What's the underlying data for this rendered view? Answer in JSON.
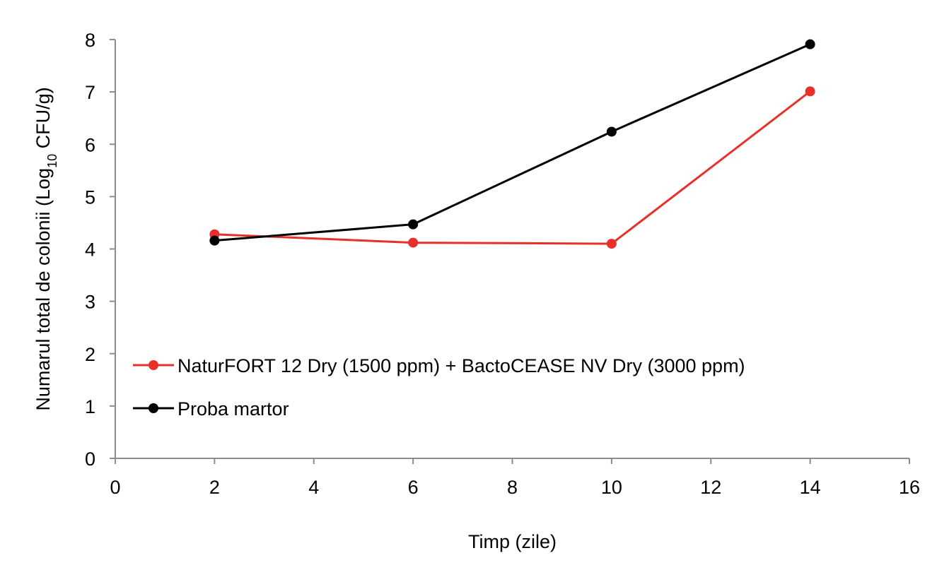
{
  "chart_data": {
    "type": "line",
    "xlabel": "Timp (zile)",
    "ylabel": {
      "prefix": "Numarul total de colonii (Log",
      "subscript": "10",
      "suffix": " CFU/g)"
    },
    "xlim": [
      0,
      16
    ],
    "ylim": [
      0,
      8
    ],
    "xticks": [
      "0",
      "2",
      "4",
      "6",
      "8",
      "10",
      "12",
      "14",
      "16"
    ],
    "yticks": [
      "0",
      "1",
      "2",
      "3",
      "4",
      "5",
      "6",
      "7",
      "8"
    ],
    "grid": false,
    "legend_position": "lower-left",
    "series": [
      {
        "name": "NaturFORT 12 Dry (1500 ppm) + BactoCEASE NV Dry (3000 ppm)",
        "color": "#e8302a",
        "x": [
          2,
          6,
          10,
          14
        ],
        "y": [
          4.28,
          4.12,
          4.1,
          7.01
        ]
      },
      {
        "name": "Proba martor",
        "color": "#000000",
        "x": [
          2,
          6,
          10,
          14
        ],
        "y": [
          4.16,
          4.47,
          6.24,
          7.91
        ]
      }
    ]
  }
}
